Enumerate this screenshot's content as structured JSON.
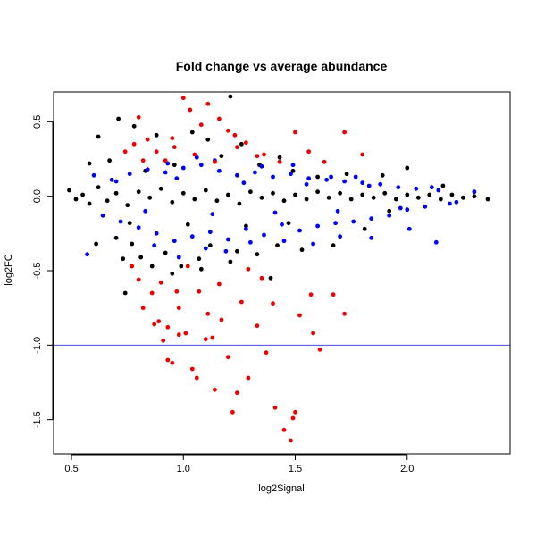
{
  "chart_data": {
    "type": "scatter",
    "title": "Fold change vs average abundance",
    "xlabel": "log2Signal",
    "ylabel": "log2FC",
    "xlim": [
      0.42,
      2.46
    ],
    "ylim": [
      -1.73,
      0.7
    ],
    "x_ticks": [
      0.5,
      1.0,
      1.5,
      2.0
    ],
    "x_tick_labels": [
      "0.5",
      "1.0",
      "1.5",
      "2.0"
    ],
    "y_ticks": [
      -1.5,
      -1.0,
      -0.5,
      0.0,
      0.5
    ],
    "y_tick_labels": [
      "-1.5",
      "-1.0",
      "-0.5",
      "0.0",
      "0.5"
    ],
    "hline": {
      "y": -1.0,
      "color": "#4a4ae0"
    },
    "grid": false,
    "legend": "none",
    "colors": {
      "black": "#000000",
      "blue": "#0000ff",
      "red": "#ee0000"
    },
    "series": [
      {
        "color": "black",
        "points": [
          [
            0.49,
            0.04
          ],
          [
            0.52,
            -0.02
          ],
          [
            0.55,
            0.01
          ],
          [
            0.58,
            -0.05
          ],
          [
            0.62,
            0.06
          ],
          [
            0.66,
            -0.03
          ],
          [
            0.7,
            0.02
          ],
          [
            0.75,
            -0.06
          ],
          [
            0.8,
            0.03
          ],
          [
            0.85,
            -0.01
          ],
          [
            0.9,
            0.05
          ],
          [
            0.95,
            -0.04
          ],
          [
            1.0,
            0.02
          ],
          [
            1.05,
            -0.02
          ],
          [
            1.1,
            0.04
          ],
          [
            1.15,
            -0.03
          ],
          [
            1.2,
            0.01
          ],
          [
            1.25,
            -0.05
          ],
          [
            1.3,
            0.03
          ],
          [
            1.35,
            -0.01
          ],
          [
            1.4,
            0.02
          ],
          [
            1.45,
            -0.03
          ],
          [
            1.5,
            0.01
          ],
          [
            1.55,
            -0.02
          ],
          [
            1.6,
            0.03
          ],
          [
            1.65,
            -0.01
          ],
          [
            1.7,
            0.02
          ],
          [
            1.75,
            -0.02
          ],
          [
            1.8,
            0.01
          ],
          [
            1.85,
            -0.01
          ],
          [
            1.9,
            0.02
          ],
          [
            1.95,
            -0.02
          ],
          [
            2.0,
            0.01
          ],
          [
            2.05,
            -0.01
          ],
          [
            2.1,
            0.01
          ],
          [
            2.15,
            -0.02
          ],
          [
            2.2,
            0.01
          ],
          [
            2.25,
            -0.01
          ],
          [
            2.3,
            0.0
          ],
          [
            2.36,
            -0.02
          ],
          [
            0.62,
            0.4
          ],
          [
            0.71,
            0.52
          ],
          [
            0.78,
            0.47
          ],
          [
            0.88,
            0.41
          ],
          [
            1.04,
            0.43
          ],
          [
            1.11,
            0.38
          ],
          [
            1.21,
            0.67
          ],
          [
            1.26,
            0.35
          ],
          [
            1.43,
            0.26
          ],
          [
            1.6,
            0.13
          ],
          [
            2.0,
            0.19
          ],
          [
            0.77,
            -0.32
          ],
          [
            0.81,
            -0.41
          ],
          [
            0.86,
            -0.47
          ],
          [
            0.92,
            -0.38
          ],
          [
            0.99,
            -0.47
          ],
          [
            1.07,
            -0.42
          ],
          [
            1.12,
            -0.33
          ],
          [
            1.21,
            -0.44
          ],
          [
            1.33,
            -0.39
          ],
          [
            1.42,
            -0.33
          ],
          [
            0.61,
            -0.32
          ],
          [
            0.7,
            -0.28
          ],
          [
            0.73,
            -0.42
          ],
          [
            0.74,
            -0.65
          ],
          [
            0.95,
            -0.52
          ],
          [
            1.08,
            -0.49
          ],
          [
            1.24,
            -0.37
          ],
          [
            1.39,
            -0.55
          ],
          [
            1.53,
            -0.36
          ],
          [
            1.67,
            -0.33
          ],
          [
            1.81,
            -0.22
          ],
          [
            0.67,
            0.24
          ],
          [
            0.83,
            0.17
          ],
          [
            0.96,
            0.21
          ],
          [
            1.17,
            0.27
          ],
          [
            1.34,
            0.21
          ],
          [
            1.49,
            0.17
          ],
          [
            1.73,
            0.15
          ],
          [
            1.89,
            0.14
          ],
          [
            2.16,
            0.07
          ],
          [
            0.58,
            0.22
          ],
          [
            0.76,
            -0.18
          ],
          [
            1.02,
            -0.19
          ],
          [
            1.28,
            -0.2
          ],
          [
            1.47,
            -0.18
          ],
          [
            1.92,
            -0.1
          ]
        ]
      },
      {
        "color": "blue",
        "points": [
          [
            0.57,
            -0.39
          ],
          [
            0.6,
            0.14
          ],
          [
            0.64,
            -0.13
          ],
          [
            0.68,
            0.11
          ],
          [
            0.72,
            -0.17
          ],
          [
            0.76,
            0.15
          ],
          [
            0.8,
            -0.21
          ],
          [
            0.84,
            0.18
          ],
          [
            0.88,
            -0.25
          ],
          [
            0.92,
            0.16
          ],
          [
            0.96,
            -0.3
          ],
          [
            1.0,
            0.19
          ],
          [
            1.04,
            -0.27
          ],
          [
            1.08,
            0.21
          ],
          [
            1.12,
            -0.24
          ],
          [
            1.16,
            0.17
          ],
          [
            1.2,
            -0.29
          ],
          [
            1.24,
            0.14
          ],
          [
            1.28,
            -0.22
          ],
          [
            1.32,
            0.16
          ],
          [
            1.36,
            -0.26
          ],
          [
            1.4,
            0.13
          ],
          [
            1.44,
            -0.19
          ],
          [
            1.48,
            0.15
          ],
          [
            1.52,
            -0.23
          ],
          [
            1.56,
            0.12
          ],
          [
            1.6,
            -0.2
          ],
          [
            1.64,
            0.11
          ],
          [
            1.68,
            -0.18
          ],
          [
            1.72,
            0.1
          ],
          [
            1.76,
            -0.17
          ],
          [
            1.8,
            0.09
          ],
          [
            1.84,
            -0.15
          ],
          [
            1.88,
            0.08
          ],
          [
            1.92,
            -0.13
          ],
          [
            1.96,
            0.06
          ],
          [
            2.0,
            -0.09
          ],
          [
            2.04,
            0.05
          ],
          [
            2.08,
            -0.07
          ],
          [
            2.14,
            0.04
          ],
          [
            2.22,
            -0.04
          ],
          [
            2.3,
            0.03
          ],
          [
            0.87,
            -0.33
          ],
          [
            0.98,
            -0.41
          ],
          [
            1.1,
            -0.35
          ],
          [
            1.19,
            -0.37
          ],
          [
            1.3,
            -0.31
          ],
          [
            1.45,
            -0.3
          ],
          [
            1.58,
            -0.32
          ],
          [
            1.7,
            -0.27
          ],
          [
            1.84,
            -0.28
          ],
          [
            2.01,
            -0.22
          ],
          [
            2.13,
            -0.31
          ],
          [
            1.66,
            0.13
          ],
          [
            0.93,
            0.22
          ],
          [
            1.06,
            0.26
          ],
          [
            1.14,
            0.24
          ],
          [
            1.35,
            0.2
          ],
          [
            1.49,
            0.21
          ],
          [
            1.77,
            0.13
          ],
          [
            0.7,
            0.1
          ],
          [
            0.83,
            -0.1
          ],
          [
            0.97,
            0.12
          ],
          [
            1.13,
            -0.12
          ],
          [
            1.27,
            0.09
          ],
          [
            1.41,
            -0.11
          ],
          [
            1.55,
            0.08
          ],
          [
            1.69,
            -0.1
          ],
          [
            1.83,
            0.07
          ],
          [
            1.97,
            -0.08
          ],
          [
            2.11,
            0.06
          ],
          [
            2.19,
            -0.05
          ]
        ]
      },
      {
        "color": "red",
        "points": [
          [
            0.74,
            0.3
          ],
          [
            0.8,
            0.53
          ],
          [
            0.84,
            0.38
          ],
          [
            0.88,
            0.3
          ],
          [
            0.92,
            0.24
          ],
          [
            0.96,
            0.33
          ],
          [
            1.0,
            0.66
          ],
          [
            1.03,
            0.58
          ],
          [
            1.08,
            0.48
          ],
          [
            1.11,
            0.62
          ],
          [
            1.16,
            0.52
          ],
          [
            1.2,
            0.44
          ],
          [
            1.23,
            0.41
          ],
          [
            1.28,
            0.36
          ],
          [
            1.33,
            0.27
          ],
          [
            1.36,
            0.28
          ],
          [
            1.5,
            0.43
          ],
          [
            1.56,
            0.3
          ],
          [
            1.72,
            0.43
          ],
          [
            1.8,
            0.28
          ],
          [
            0.95,
            0.39
          ],
          [
            1.05,
            0.28
          ],
          [
            1.14,
            0.23
          ],
          [
            0.82,
            0.24
          ],
          [
            1.43,
            0.23
          ],
          [
            1.63,
            0.23
          ],
          [
            0.78,
            0.35
          ],
          [
            1.24,
            0.33
          ],
          [
            0.77,
            -0.47
          ],
          [
            0.8,
            -0.56
          ],
          [
            0.82,
            -0.75
          ],
          [
            0.86,
            -0.65
          ],
          [
            0.89,
            -0.84
          ],
          [
            0.91,
            -0.97
          ],
          [
            0.93,
            -0.88
          ],
          [
            0.95,
            -1.12
          ],
          [
            0.98,
            -0.75
          ],
          [
            1.01,
            -0.92
          ],
          [
            1.04,
            -1.16
          ],
          [
            1.07,
            -0.64
          ],
          [
            1.1,
            -0.96
          ],
          [
            1.14,
            -1.3
          ],
          [
            1.17,
            -0.83
          ],
          [
            1.2,
            -1.08
          ],
          [
            1.24,
            -1.32
          ],
          [
            1.26,
            -0.71
          ],
          [
            1.29,
            -1.22
          ],
          [
            1.33,
            -0.87
          ],
          [
            1.37,
            -1.05
          ],
          [
            1.41,
            -1.42
          ],
          [
            1.45,
            -1.57
          ],
          [
            1.48,
            -1.64
          ],
          [
            1.5,
            -1.45
          ],
          [
            1.52,
            -0.8
          ],
          [
            1.57,
            -0.66
          ],
          [
            1.61,
            -1.03
          ],
          [
            1.67,
            -0.66
          ],
          [
            1.72,
            -0.79
          ],
          [
            0.93,
            -1.1
          ],
          [
            0.98,
            -0.93
          ],
          [
            1.06,
            -1.22
          ],
          [
            1.22,
            -1.45
          ],
          [
            1.13,
            -0.95
          ],
          [
            0.87,
            -0.86
          ],
          [
            1.35,
            -0.55
          ],
          [
            1.4,
            -0.72
          ],
          [
            1.16,
            -0.59
          ],
          [
            1.02,
            -0.47
          ],
          [
            0.9,
            -0.58
          ],
          [
            1.29,
            -0.49
          ],
          [
            1.49,
            -1.49
          ],
          [
            1.58,
            -0.92
          ],
          [
            0.97,
            -0.64
          ],
          [
            1.11,
            -0.79
          ]
        ]
      }
    ]
  }
}
